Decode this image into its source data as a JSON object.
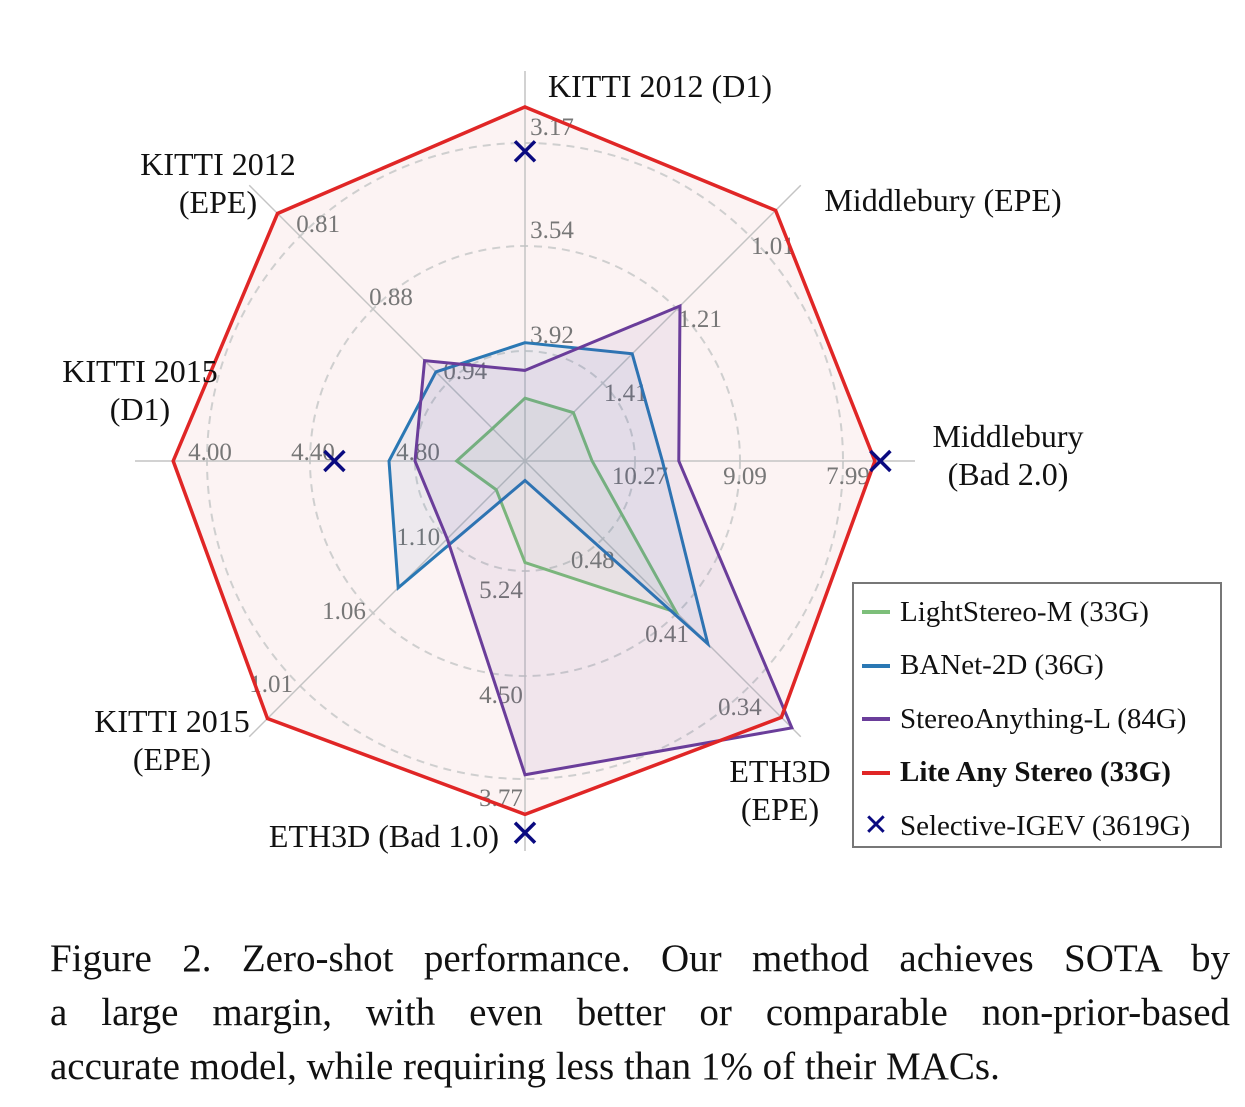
{
  "chart_data": {
    "type": "radar",
    "axes": [
      {
        "name": "KITTI 2012 (D1)",
        "label_lines": [
          "KITTI 2012 (D1)"
        ],
        "ticks": [
          "3.92",
          "3.54",
          "3.17"
        ],
        "tick_values": [
          3.92,
          3.54,
          3.17
        ]
      },
      {
        "name": "Middlebury (EPE)",
        "label_lines": [
          "Middlebury (EPE)"
        ],
        "ticks": [
          "1.41",
          "1.21",
          "1.01"
        ],
        "tick_values": [
          1.41,
          1.21,
          1.01
        ]
      },
      {
        "name": "Middlebury (Bad 2.0)",
        "label_lines": [
          "Middlebury",
          "(Bad 2.0)"
        ],
        "ticks": [
          "10.27",
          "9.09",
          "7.99"
        ],
        "tick_values": [
          10.27,
          9.09,
          7.99
        ]
      },
      {
        "name": "ETH3D (EPE)",
        "label_lines": [
          "ETH3D",
          "(EPE)"
        ],
        "ticks": [
          "0.48",
          "0.41",
          "0.34"
        ],
        "tick_values": [
          0.48,
          0.41,
          0.34
        ]
      },
      {
        "name": "ETH3D (Bad 1.0)",
        "label_lines": [
          "ETH3D (Bad 1.0)"
        ],
        "ticks": [
          "5.24",
          "4.50",
          "3.77"
        ],
        "tick_values": [
          5.24,
          4.5,
          3.77
        ]
      },
      {
        "name": "KITTI 2015 (EPE)",
        "label_lines": [
          "KITTI 2015",
          "(EPE)"
        ],
        "ticks": [
          "1.10",
          "1.06",
          "1.01"
        ],
        "tick_values": [
          1.1,
          1.06,
          1.01
        ]
      },
      {
        "name": "KITTI 2015 (D1)",
        "label_lines": [
          "KITTI 2015",
          "(D1)"
        ],
        "ticks": [
          "4.80",
          "4.40",
          "4.00"
        ],
        "tick_values": [
          4.8,
          4.4,
          4.0
        ]
      },
      {
        "name": "KITTI 2012 (EPE)",
        "label_lines": [
          "KITTI 2012",
          "(EPE)"
        ],
        "ticks": [
          "0.94",
          "0.88",
          "0.81"
        ],
        "tick_values": [
          0.94,
          0.88,
          0.81
        ]
      }
    ],
    "series": [
      {
        "name": "LightStereo-M (33G)",
        "color": "#7dbf7a",
        "style": "line",
        "bold": false,
        "values": [
          4.09,
          1.49,
          10.74,
          0.41,
          5.3,
          1.13,
          4.96,
          0.98
        ]
      },
      {
        "name": "BANet-2D (36G)",
        "color": "#2a78b4",
        "style": "line",
        "bold": false,
        "values": [
          3.89,
          1.33,
          9.97,
          0.38,
          5.88,
          1.07,
          4.7,
          0.93
        ]
      },
      {
        "name": "StereoAnything-L (84G)",
        "color": "#6a3d9a",
        "style": "line",
        "bold": false,
        "values": [
          3.99,
          1.2,
          9.79,
          0.3,
          3.8,
          1.1,
          4.8,
          0.92
        ]
      },
      {
        "name": "Lite Any Stereo (33G)",
        "color": "#e02626",
        "style": "line",
        "bold": true,
        "values": [
          3.04,
          0.94,
          7.64,
          0.31,
          3.52,
          0.99,
          3.87,
          0.79
        ]
      },
      {
        "name": "Selective-IGEV (3619G)",
        "color": "#0a0a80",
        "style": "marker-x",
        "bold": false,
        "values": [
          3.2,
          null,
          7.58,
          null,
          3.39,
          null,
          4.49,
          null
        ]
      }
    ],
    "grid": true,
    "legend_position": "bottom-right"
  },
  "caption": {
    "lines": [
      "Figure 2. Zero-shot performance. Our method achieves SOTA by",
      "a large margin, with even better or comparable non-prior-based",
      "accurate model, while requiring less than 1% of their MACs."
    ]
  }
}
